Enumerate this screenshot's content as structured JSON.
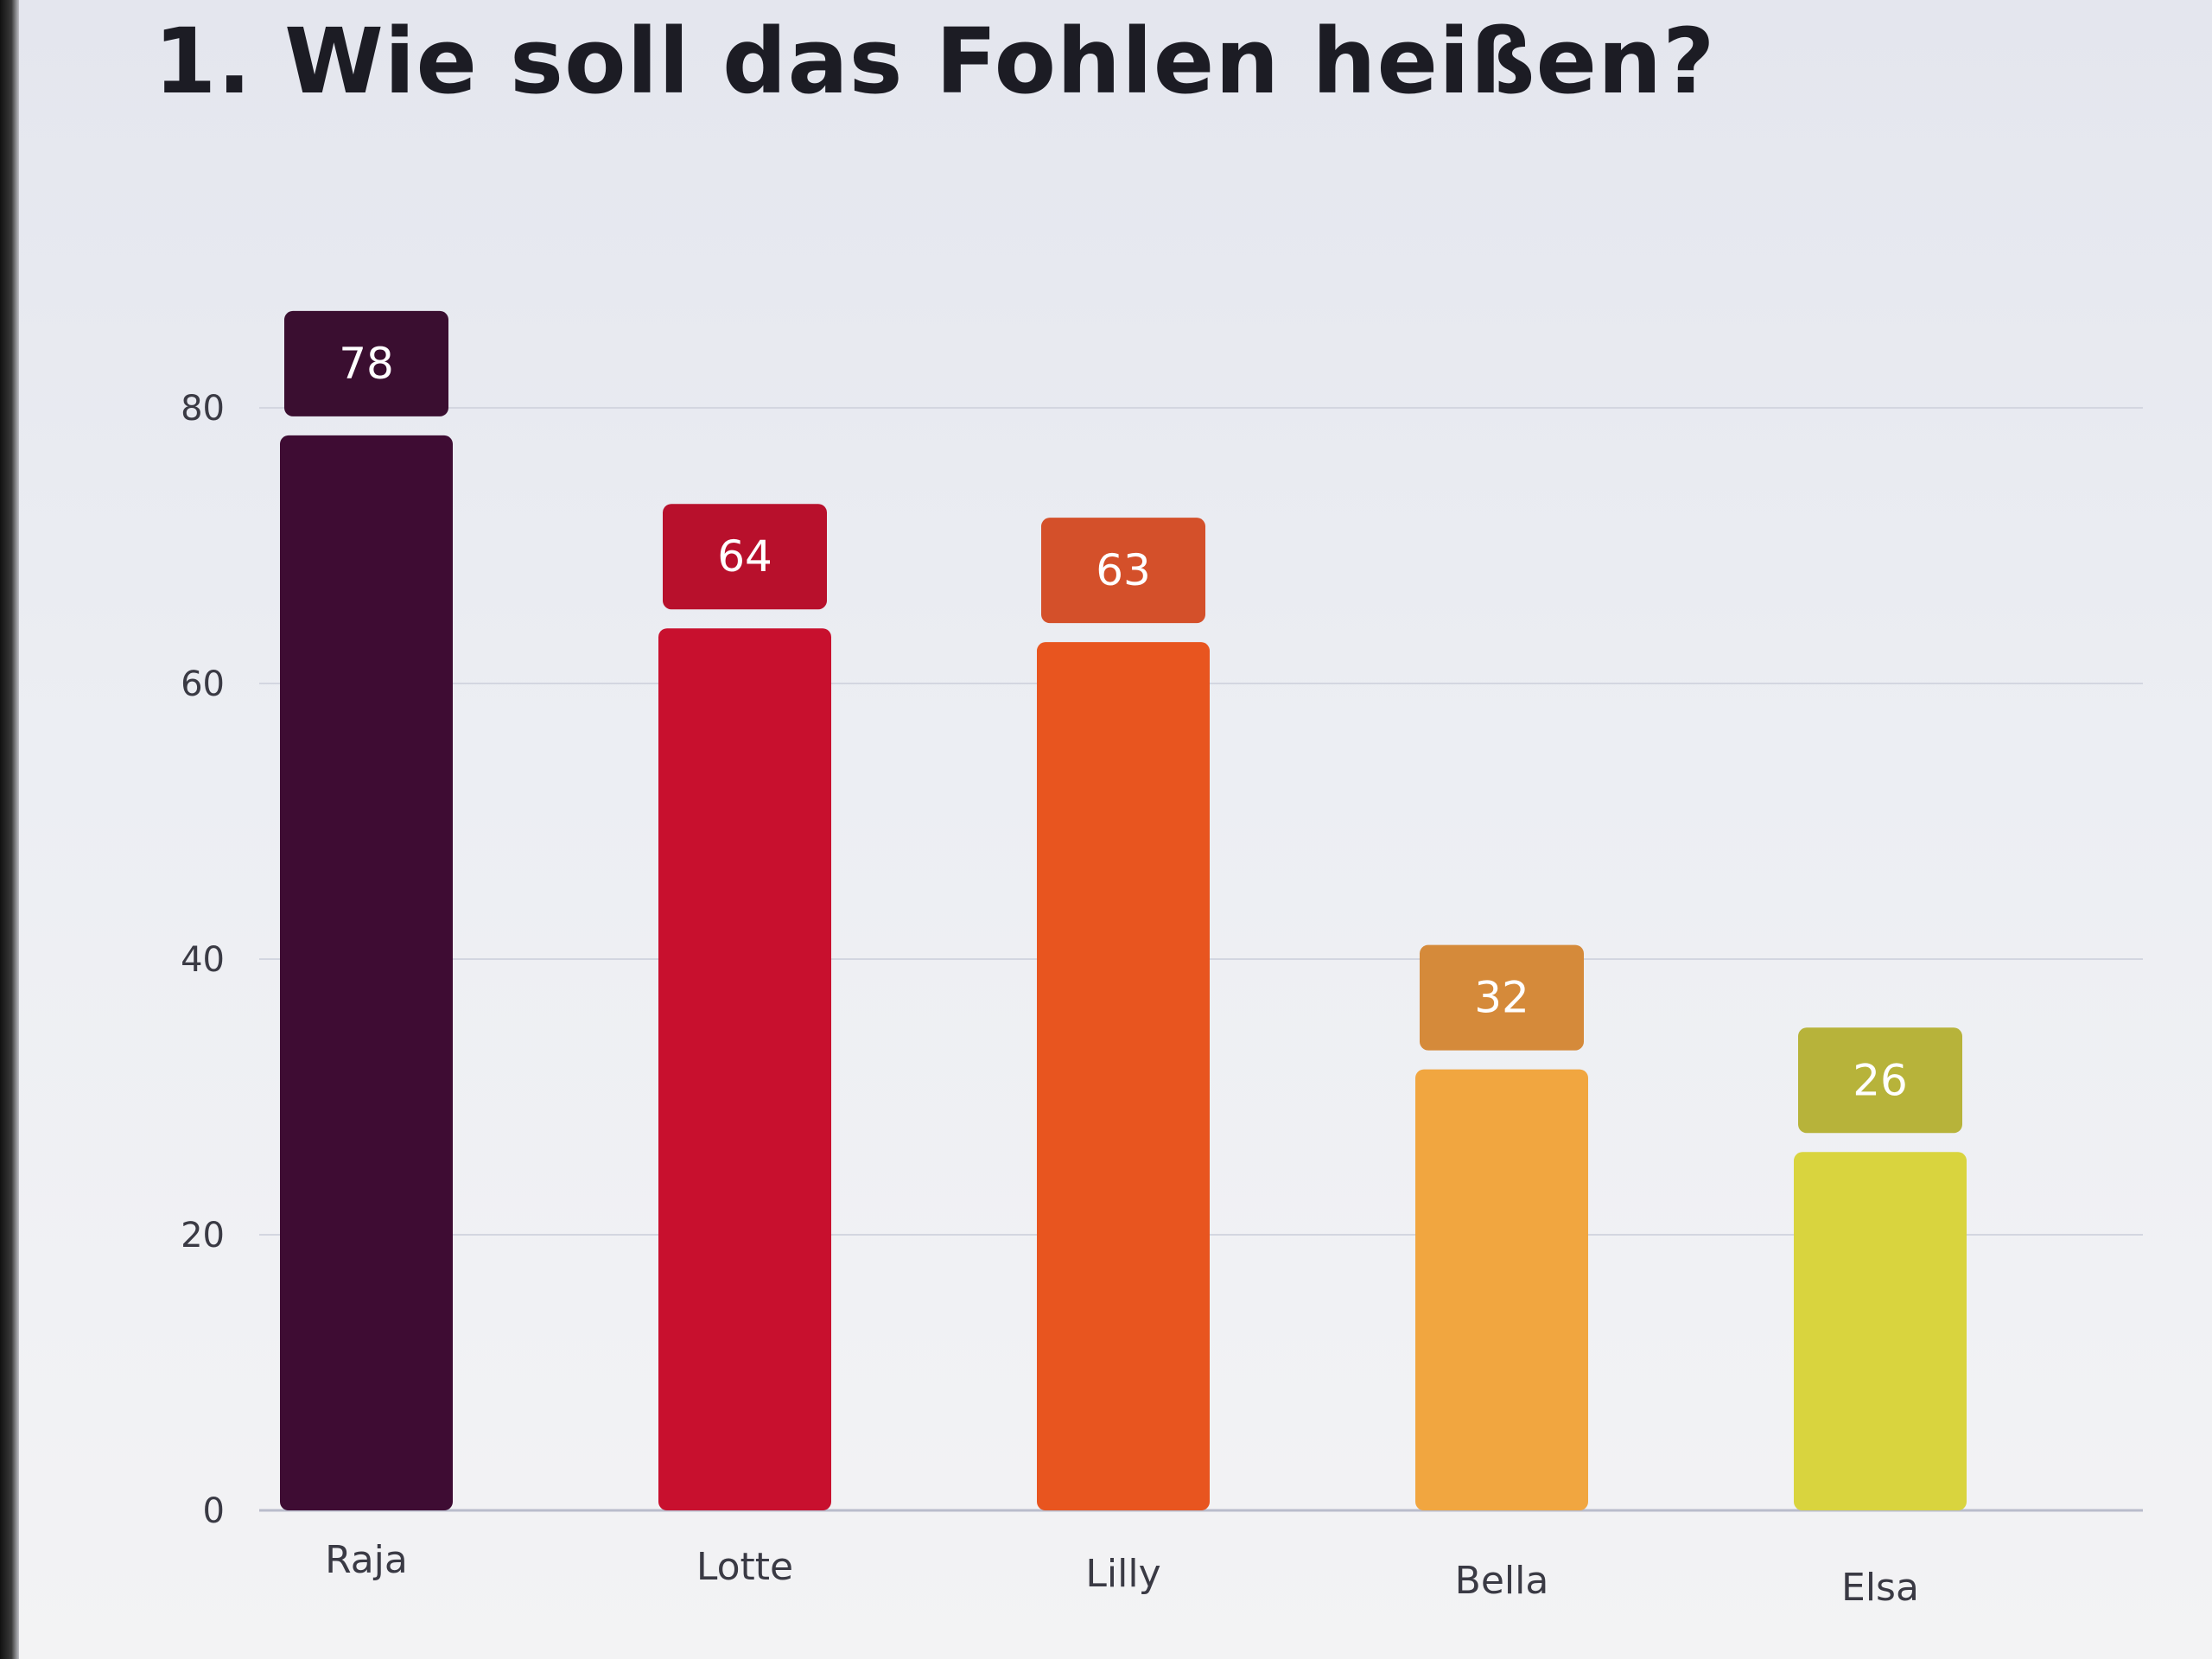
{
  "title": "1. Wie soll das Fohlen heißen?",
  "chart_data": {
    "type": "bar",
    "title": "1. Wie soll das Fohlen heißen?",
    "categories": [
      "Raja",
      "Lotte",
      "Lilly",
      "Bella",
      "Elsa"
    ],
    "values": [
      78,
      64,
      63,
      32,
      26
    ],
    "data_labels": [
      "78",
      "64",
      "63",
      "32",
      "26"
    ],
    "colors": [
      "#3e0c33",
      "#c8102e",
      "#e8551f",
      "#f1a640",
      "#d9d43e"
    ],
    "label_colors": [
      "#3a0e30",
      "#b8102c",
      "#d4502a",
      "#d58a3a",
      "#b7b33a"
    ],
    "ylim": [
      0,
      80
    ],
    "yticks": [
      0,
      20,
      40,
      60,
      80
    ],
    "ytick_labels": [
      "0",
      "20",
      "40",
      "60",
      "80"
    ],
    "grid": true,
    "xlabel": "",
    "ylabel": "",
    "legend": "none"
  }
}
